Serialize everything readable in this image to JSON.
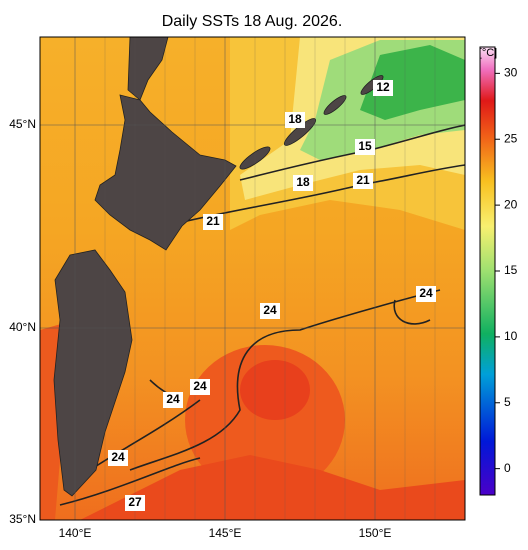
{
  "title": "Daily SSTs 18 Aug. 2026.",
  "lat_labels": [
    "45°N",
    "40°N",
    "35°N"
  ],
  "lon_labels": [
    "140°E",
    "145°E",
    "150°E"
  ],
  "colorbar": {
    "unit": "[°C]",
    "range": [
      -2,
      32
    ],
    "ticks": [
      0,
      5,
      10,
      15,
      20,
      25,
      30
    ]
  },
  "contour_labels": [
    "12",
    "18",
    "15",
    "18",
    "21",
    "21",
    "24",
    "24",
    "24",
    "24",
    "24",
    "27"
  ]
}
